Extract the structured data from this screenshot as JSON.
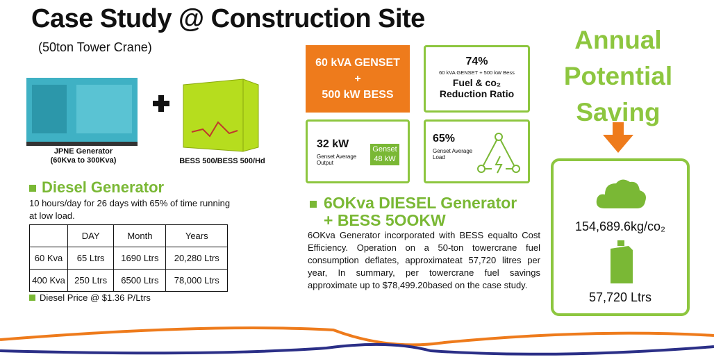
{
  "title": "Case Study @ Construction Site",
  "subtitle": "(50ton Tower Crane)",
  "products": [
    {
      "lines": [
        "JPNE Generator",
        "(60Kva to 300Kva)"
      ]
    },
    {
      "lines": [
        "BESS 500/BESS 500/Hd"
      ]
    }
  ],
  "diesel": {
    "heading": "Diesel Generator",
    "description": "10 hours/day for 26 days with 65% of time running at low load.",
    "table": {
      "header": [
        "DAY",
        "Month",
        "Years"
      ],
      "rows": [
        [
          "60 Kva",
          "65 Ltrs",
          "1690 Ltrs",
          "20,280 Ltrs"
        ],
        [
          "400 Kva",
          "250 Ltrs",
          "6500 Ltrs",
          "78,000 Ltrs"
        ]
      ]
    },
    "note": "Diesel Price @ $1.36 P/Ltrs"
  },
  "cards": {
    "config": [
      "60 kVA GENSET",
      "+",
      "500 kW BESS"
    ],
    "ratio": {
      "value": "74%",
      "caption": "60 kVA GENSET + 500 kW Bess",
      "label": [
        "Fuel & co₂",
        "Reduction Ratio"
      ]
    },
    "output": {
      "value": "32 kW",
      "label": [
        "Genset Average",
        "Output"
      ],
      "badge": [
        "Genset",
        "48 kW"
      ]
    },
    "load": {
      "value": "65%",
      "label": [
        "Genset Average",
        "Load"
      ]
    }
  },
  "bess": {
    "heading": [
      "6OKva DIESEL Generator",
      "+ BESS 5OOKW"
    ],
    "description": "6OKva Generator incorporated with BESS equalto Cost Efficiency. Operation on a 50-ton towercrane fuel consumption deflates, approximateat 57,720 litres per year, In summary, per towercrane fuel savings approximate up to $78,499.20based on the case study."
  },
  "saving": {
    "heading": [
      "Annual",
      "Potential",
      "Saving"
    ],
    "co2": "154,689.6kg/co₂",
    "fuel": "57,720 Ltrs"
  }
}
